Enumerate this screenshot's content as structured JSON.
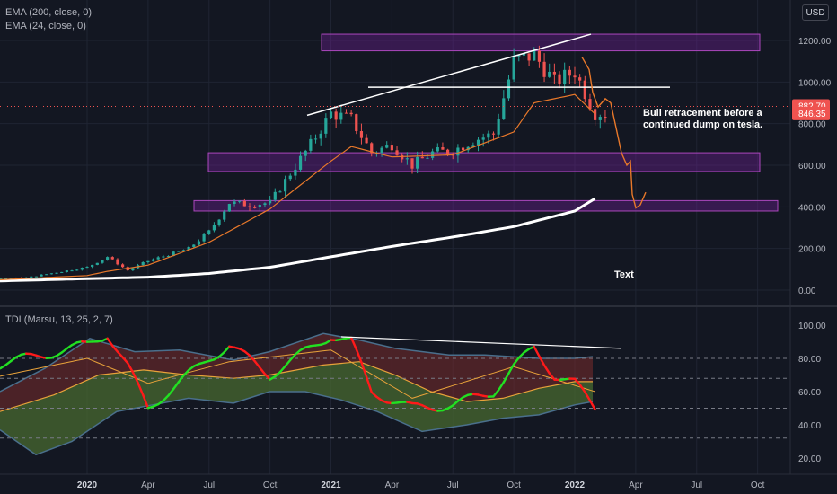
{
  "legend": {
    "ema200": "EMA (200, close, 0)",
    "ema24": "EMA (24, close, 0)",
    "tdi": "TDI (Marsu, 13, 25, 2, 7)"
  },
  "currency_button": "USD",
  "annotations": {
    "bull_note_line1": "Bull retracement before a",
    "bull_note_line2": "continued dump on tesla.",
    "text_label": "Text"
  },
  "colors": {
    "background": "#131722",
    "grid": "#1f2433",
    "up": "#26a69a",
    "down": "#ef5350",
    "ema24": "#e8782a",
    "ema200": "#ffffff",
    "zone": "#7b1fa2",
    "tdi_green": "#22e022",
    "tdi_red": "#ff1a1a",
    "tdi_band": "#4a6f8c",
    "tdi_mid": "#e8a23a",
    "price_tag": "#ef5350"
  },
  "chart_data": [
    {
      "type": "candlestick",
      "title": "",
      "x_tick_labels": [
        "2020",
        "Apr",
        "Jul",
        "Oct",
        "2021",
        "Apr",
        "Jul",
        "Oct",
        "2022",
        "Apr",
        "Jul",
        "Oct"
      ],
      "y_tick_labels": [
        "0.00",
        "200.00",
        "400.00",
        "600.00",
        "800.00",
        "1000.00",
        "1200.00"
      ],
      "ylim": [
        -30,
        1300
      ],
      "price_labels": [
        "882.70",
        "846.35"
      ],
      "last_price": 882.7,
      "ema24_value": 846.35,
      "series": [
        {
          "name": "EMA (200, close, 0)",
          "x": [
            "2019-01",
            "2019-07",
            "2020-01",
            "2020-04",
            "2020-07",
            "2020-10",
            "2021-01",
            "2021-04",
            "2021-07",
            "2021-10",
            "2022-01",
            "2022-02"
          ],
          "values": [
            28,
            40,
            55,
            62,
            80,
            110,
            160,
            210,
            255,
            305,
            380,
            440
          ]
        },
        {
          "name": "EMA (24, close, 0)",
          "x": [
            "2019-01",
            "2019-07",
            "2020-01",
            "2020-02",
            "2020-04",
            "2020-07",
            "2020-10",
            "2021-01",
            "2021-02",
            "2021-04",
            "2021-07",
            "2021-10",
            "2021-11",
            "2022-01",
            "2022-02"
          ],
          "values": [
            40,
            42,
            70,
            90,
            120,
            230,
            390,
            620,
            690,
            640,
            650,
            760,
            900,
            940,
            846
          ]
        }
      ],
      "candles_weekly_close": {
        "x": [
          "2019-01",
          "2019-04",
          "2019-07",
          "2019-10",
          "2020-01",
          "2020-02",
          "2020-03",
          "2020-04",
          "2020-05",
          "2020-06",
          "2020-07",
          "2020-08",
          "2020-09",
          "2020-10",
          "2020-11",
          "2020-12",
          "2021-01",
          "2021-02",
          "2021-03",
          "2021-04",
          "2021-05",
          "2021-06",
          "2021-07",
          "2021-08",
          "2021-09",
          "2021-10",
          "2021-11",
          "2021-12",
          "2022-01",
          "2022-02"
        ],
        "values": [
          65,
          55,
          50,
          60,
          110,
          160,
          95,
          140,
          170,
          200,
          280,
          420,
          410,
          420,
          560,
          700,
          850,
          820,
          660,
          700,
          600,
          660,
          670,
          720,
          750,
          1100,
          1130,
          1000,
          1050,
          850
        ]
      },
      "zones": [
        [
          1150,
          1230
        ],
        [
          570,
          660
        ],
        [
          380,
          430
        ]
      ],
      "trendlines": [
        "rising resistance",
        "horizontal level ~975"
      ],
      "projection": "orange hand-drawn path from ~1120 down to ~390"
    },
    {
      "type": "line",
      "title": "TDI (Marsu, 13, 25, 2, 7)",
      "y_tick_labels": [
        "20.00",
        "40.00",
        "60.00",
        "80.00",
        "100.00"
      ],
      "ylim": [
        15,
        105
      ],
      "levels": [
        32,
        50,
        68,
        80
      ],
      "series": [
        {
          "name": "rsi_fast",
          "x": [
            "2019-01",
            "2019-07",
            "2020-01",
            "2020-02",
            "2020-03",
            "2020-04",
            "2020-07",
            "2020-08",
            "2020-10",
            "2020-12",
            "2021-01",
            "2021-02",
            "2021-03",
            "2021-05",
            "2021-07",
            "2021-09",
            "2021-10",
            "2021-11",
            "2021-12",
            "2022-01",
            "2022-02"
          ],
          "values": [
            45,
            72,
            88,
            95,
            75,
            50,
            80,
            88,
            70,
            86,
            94,
            90,
            60,
            50,
            52,
            60,
            75,
            86,
            70,
            65,
            50
          ]
        },
        {
          "name": "signal",
          "x": [
            "2019-01",
            "2020-01",
            "2020-04",
            "2020-08",
            "2021-01",
            "2021-05",
            "2021-10",
            "2022-02"
          ],
          "values": [
            50,
            80,
            65,
            78,
            85,
            56,
            75,
            60
          ]
        }
      ]
    }
  ]
}
